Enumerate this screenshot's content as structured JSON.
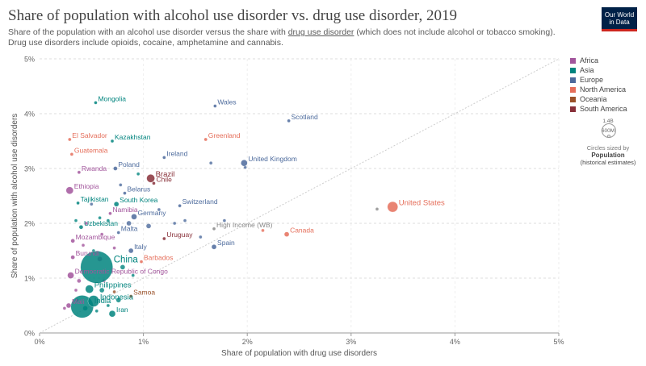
{
  "header": {
    "title": "Share of population with alcohol use disorder vs. drug use disorder, 2019",
    "subtitle_before": "Share of the population with an alcohol use disorder versus the share with ",
    "subtitle_link": "drug use disorder",
    "subtitle_after": " (which does not include alcohol or tobacco smoking). Drug use disorders include opioids, cocaine, amphetamine and cannabis.",
    "logo_line1": "Our World",
    "logo_line2": "in Data"
  },
  "legend": {
    "items": [
      {
        "label": "Africa",
        "color": "#a2559c"
      },
      {
        "label": "Asia",
        "color": "#00847e"
      },
      {
        "label": "Europe",
        "color": "#4c6a9c"
      },
      {
        "label": "North America",
        "color": "#e56e5a"
      },
      {
        "label": "Oceania",
        "color": "#9a5129"
      },
      {
        "label": "South America",
        "color": "#883039"
      }
    ],
    "size_max_label": "1.4B",
    "size_min_label": "600M",
    "size_note": "Circles sized by",
    "size_var": "Population",
    "size_var2": "(historical estimates)"
  },
  "chart_data": {
    "type": "scatter",
    "xlabel": "Share of population with drug use disorders",
    "ylabel": "Share of population with alcohol use disorders",
    "xlim": [
      0,
      5
    ],
    "ylim": [
      0,
      5
    ],
    "xticks": [
      "0%",
      "1%",
      "2%",
      "3%",
      "4%",
      "5%"
    ],
    "yticks": [
      "0%",
      "1%",
      "2%",
      "3%",
      "4%",
      "5%"
    ],
    "reference_line": "y = x",
    "grid": "horizontal",
    "legend_position": "right",
    "region_colors": {
      "Africa": "#a2559c",
      "Asia": "#00847e",
      "Europe": "#4c6a9c",
      "North America": "#e56e5a",
      "Oceania": "#9a5129",
      "South America": "#883039",
      "Other": "#888888"
    },
    "points": [
      {
        "label": "Mongolia",
        "x": 0.54,
        "y": 4.2,
        "region": "Asia",
        "size": 2
      },
      {
        "label": "Wales",
        "x": 1.69,
        "y": 4.14,
        "region": "Europe",
        "size": 2
      },
      {
        "label": "Scotland",
        "x": 2.4,
        "y": 3.87,
        "region": "Europe",
        "size": 2
      },
      {
        "label": "El Salvador",
        "x": 0.29,
        "y": 3.53,
        "region": "North America",
        "size": 2
      },
      {
        "label": "Kazakhstan",
        "x": 0.7,
        "y": 3.5,
        "region": "Asia",
        "size": 2
      },
      {
        "label": "Greenland",
        "x": 1.6,
        "y": 3.53,
        "region": "North America",
        "size": 2
      },
      {
        "label": "Guatemala",
        "x": 0.31,
        "y": 3.26,
        "region": "North America",
        "size": 2
      },
      {
        "label": "Ireland",
        "x": 1.2,
        "y": 3.2,
        "region": "Europe",
        "size": 2
      },
      {
        "label": "United Kingdom",
        "x": 1.97,
        "y": 3.1,
        "region": "Europe",
        "size": 4
      },
      {
        "label": "Poland",
        "x": 0.73,
        "y": 3.0,
        "region": "Europe",
        "size": 2.5
      },
      {
        "label": "Rwanda",
        "x": 0.38,
        "y": 2.93,
        "region": "Africa",
        "size": 2
      },
      {
        "label": "Brazil",
        "x": 1.07,
        "y": 2.82,
        "region": "South America",
        "size": 5
      },
      {
        "label": "Ethiopia",
        "x": 0.29,
        "y": 2.6,
        "region": "Africa",
        "size": 4.5
      },
      {
        "label": "Chile",
        "x": 1.1,
        "y": 2.73,
        "region": "South America",
        "size": 2
      },
      {
        "label": "Belarus",
        "x": 0.82,
        "y": 2.55,
        "region": "Europe",
        "size": 2
      },
      {
        "label": "Tajikistan",
        "x": 0.37,
        "y": 2.37,
        "region": "Asia",
        "size": 2
      },
      {
        "label": "South Korea",
        "x": 0.74,
        "y": 2.35,
        "region": "Asia",
        "size": 3
      },
      {
        "label": "Switzerland",
        "x": 1.35,
        "y": 2.32,
        "region": "Europe",
        "size": 2
      },
      {
        "label": "United States",
        "x": 3.4,
        "y": 2.3,
        "region": "North America",
        "size": 6.5
      },
      {
        "label": "Namibia",
        "x": 0.68,
        "y": 2.18,
        "region": "Africa",
        "size": 2
      },
      {
        "label": "Germany",
        "x": 0.91,
        "y": 2.12,
        "region": "Europe",
        "size": 3.5
      },
      {
        "label": "Uzbekistan",
        "x": 0.4,
        "y": 1.93,
        "region": "Asia",
        "size": 2.5
      },
      {
        "label": "High Income (WB)",
        "x": 1.68,
        "y": 1.9,
        "region": "Other",
        "size": 2
      },
      {
        "label": "Canada",
        "x": 2.38,
        "y": 1.8,
        "region": "North America",
        "size": 3
      },
      {
        "label": "Malta",
        "x": 0.76,
        "y": 1.83,
        "region": "Europe",
        "size": 2
      },
      {
        "label": "Uruguay",
        "x": 1.2,
        "y": 1.72,
        "region": "South America",
        "size": 2
      },
      {
        "label": "Mozambique",
        "x": 0.32,
        "y": 1.68,
        "region": "Africa",
        "size": 2.5
      },
      {
        "label": "Spain",
        "x": 1.68,
        "y": 1.57,
        "region": "Europe",
        "size": 3
      },
      {
        "label": "Italy",
        "x": 0.88,
        "y": 1.5,
        "region": "Europe",
        "size": 3
      },
      {
        "label": "China",
        "x": 0.55,
        "y": 1.2,
        "region": "Asia",
        "size": 20
      },
      {
        "label": "Burundi",
        "x": 0.32,
        "y": 1.38,
        "region": "Africa",
        "size": 2.5
      },
      {
        "label": "Barbados",
        "x": 0.98,
        "y": 1.3,
        "region": "North America",
        "size": 2
      },
      {
        "label": "Democratic Republic of Congo",
        "x": 0.3,
        "y": 1.05,
        "region": "Africa",
        "size": 4
      },
      {
        "label": "Philippines",
        "x": 0.48,
        "y": 0.8,
        "region": "Asia",
        "size": 5
      },
      {
        "label": "Samoa",
        "x": 0.88,
        "y": 0.67,
        "region": "Oceania",
        "size": 2
      },
      {
        "label": "Indonesia",
        "x": 0.52,
        "y": 0.58,
        "region": "Asia",
        "size": 7
      },
      {
        "label": "Mali",
        "x": 0.28,
        "y": 0.5,
        "region": "Africa",
        "size": 3
      },
      {
        "label": "India",
        "x": 0.41,
        "y": 0.48,
        "region": "Asia",
        "size": 14
      },
      {
        "label": "Iran",
        "x": 0.7,
        "y": 0.35,
        "region": "Asia",
        "size": 4
      }
    ],
    "unlabeled_points": [
      {
        "x": 0.86,
        "y": 2.0,
        "region": "Europe",
        "size": 3
      },
      {
        "x": 0.78,
        "y": 2.7,
        "region": "Europe",
        "size": 2
      },
      {
        "x": 0.95,
        "y": 2.9,
        "region": "Asia",
        "size": 2
      },
      {
        "x": 0.66,
        "y": 2.05,
        "region": "Asia",
        "size": 2
      },
      {
        "x": 0.5,
        "y": 2.35,
        "region": "Europe",
        "size": 2
      },
      {
        "x": 0.45,
        "y": 2.0,
        "region": "Africa",
        "size": 2
      },
      {
        "x": 0.58,
        "y": 2.1,
        "region": "Asia",
        "size": 2
      },
      {
        "x": 0.6,
        "y": 1.8,
        "region": "Africa",
        "size": 2
      },
      {
        "x": 1.05,
        "y": 1.95,
        "region": "Europe",
        "size": 3
      },
      {
        "x": 1.15,
        "y": 2.25,
        "region": "Europe",
        "size": 2
      },
      {
        "x": 1.3,
        "y": 2.0,
        "region": "Europe",
        "size": 2
      },
      {
        "x": 1.4,
        "y": 2.05,
        "region": "Europe",
        "size": 2
      },
      {
        "x": 1.55,
        "y": 1.75,
        "region": "Europe",
        "size": 2
      },
      {
        "x": 1.65,
        "y": 3.1,
        "region": "Europe",
        "size": 2
      },
      {
        "x": 1.98,
        "y": 3.02,
        "region": "Europe",
        "size": 2
      },
      {
        "x": 1.78,
        "y": 2.05,
        "region": "Europe",
        "size": 2
      },
      {
        "x": 2.15,
        "y": 1.87,
        "region": "North America",
        "size": 2
      },
      {
        "x": 3.25,
        "y": 2.26,
        "region": "Other",
        "size": 2
      },
      {
        "x": 0.35,
        "y": 2.05,
        "region": "Asia",
        "size": 2
      },
      {
        "x": 0.42,
        "y": 1.6,
        "region": "Africa",
        "size": 2
      },
      {
        "x": 0.52,
        "y": 1.5,
        "region": "Asia",
        "size": 2
      },
      {
        "x": 0.58,
        "y": 1.35,
        "region": "Africa",
        "size": 3
      },
      {
        "x": 0.72,
        "y": 1.55,
        "region": "Africa",
        "size": 2
      },
      {
        "x": 0.8,
        "y": 1.2,
        "region": "Asia",
        "size": 3
      },
      {
        "x": 0.9,
        "y": 1.05,
        "region": "Asia",
        "size": 2
      },
      {
        "x": 0.62,
        "y": 0.95,
        "region": "Africa",
        "size": 2
      },
      {
        "x": 0.38,
        "y": 0.95,
        "region": "Africa",
        "size": 2.5
      },
      {
        "x": 0.35,
        "y": 0.78,
        "region": "Africa",
        "size": 2
      },
      {
        "x": 0.6,
        "y": 0.78,
        "region": "Asia",
        "size": 3
      },
      {
        "x": 0.72,
        "y": 0.75,
        "region": "Oceania",
        "size": 2
      },
      {
        "x": 0.76,
        "y": 0.6,
        "region": "Asia",
        "size": 3
      },
      {
        "x": 0.44,
        "y": 0.45,
        "region": "Asia",
        "size": 3
      },
      {
        "x": 0.36,
        "y": 0.6,
        "region": "Africa",
        "size": 2
      },
      {
        "x": 0.24,
        "y": 0.45,
        "region": "Africa",
        "size": 2
      },
      {
        "x": 0.66,
        "y": 0.5,
        "region": "Asia",
        "size": 2
      },
      {
        "x": 0.55,
        "y": 0.4,
        "region": "Asia",
        "size": 2
      }
    ]
  }
}
